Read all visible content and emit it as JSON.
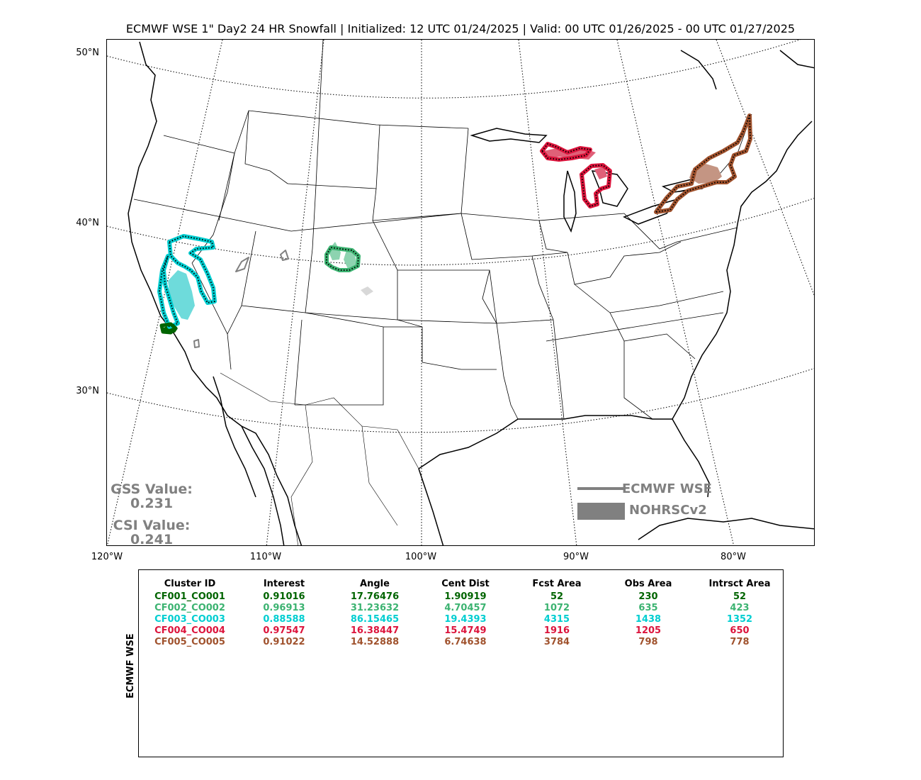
{
  "title": "ECMWF WSE 1\" Day2 24 HR Snowfall | Initialized: 12 UTC 01/24/2025 | Valid: 00 UTC 01/26/2025 - 00 UTC 01/27/2025",
  "latitude_labels": [
    "50°N",
    "40°N",
    "30°N"
  ],
  "longitude_labels": [
    "120°W",
    "110°W",
    "100°W",
    "90°W",
    "80°W"
  ],
  "scores": {
    "gss_label": "GSS Value:",
    "gss_value": "0.231",
    "csi_label": "CSI Value:",
    "csi_value": "0.241"
  },
  "legend": {
    "forecast_label": "ECMWF WSE",
    "observed_label": "NOHRSCv2",
    "color": "#808080"
  },
  "table": {
    "side_label": "ECMWF WSE",
    "headers": [
      "Cluster ID",
      "Interest",
      "Angle",
      "Cent Dist",
      "Fcst Area",
      "Obs Area",
      "Intrsct Area"
    ],
    "rows": [
      {
        "color": "#006400",
        "cells": [
          "CF001_CO001",
          "0.91016",
          "17.76476",
          "1.90919",
          "52",
          "230",
          "52"
        ]
      },
      {
        "color": "#3cb371",
        "cells": [
          "CF002_CO002",
          "0.96913",
          "31.23632",
          "4.70457",
          "1072",
          "635",
          "423"
        ]
      },
      {
        "color": "#00ced1",
        "cells": [
          "CF003_CO003",
          "0.88588",
          "86.15465",
          "19.4393",
          "4315",
          "1438",
          "1352"
        ]
      },
      {
        "color": "#dc143c",
        "cells": [
          "CF004_CO004",
          "0.97547",
          "16.38447",
          "15.4749",
          "1916",
          "1205",
          "650"
        ]
      },
      {
        "color": "#a0522d",
        "cells": [
          "CF005_CO005",
          "0.91022",
          "14.52888",
          "6.74638",
          "3784",
          "798",
          "778"
        ]
      }
    ]
  },
  "clusters": [
    {
      "id": "CF001_CO001",
      "color": "#006400",
      "region": "southern-california"
    },
    {
      "id": "CF002_CO002",
      "color": "#3cb371",
      "region": "colorado-wyoming"
    },
    {
      "id": "CF003_CO003",
      "color": "#00ced1",
      "region": "sierra-nevada"
    },
    {
      "id": "CF004_CO004",
      "color": "#dc143c",
      "region": "michigan"
    },
    {
      "id": "CF005_CO005",
      "color": "#a0522d",
      "region": "new-york-pennsylvania"
    }
  ]
}
